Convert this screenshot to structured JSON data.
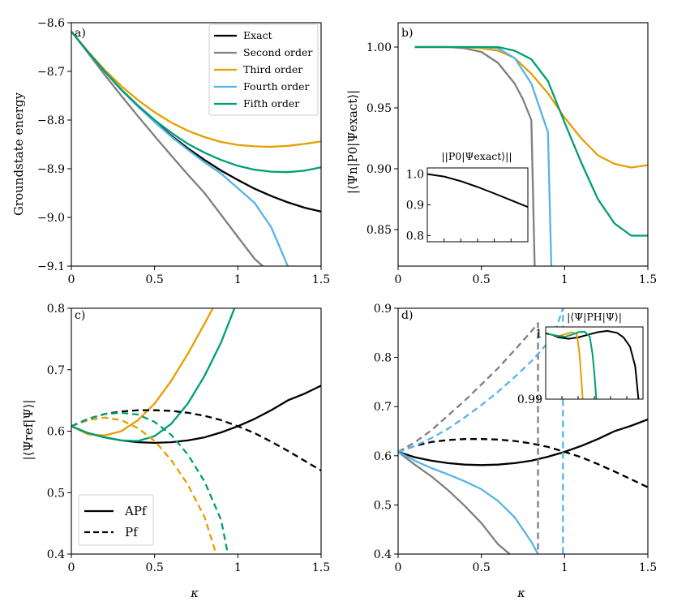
{
  "colors": {
    "exact": "#000000",
    "second": "#7f7f7f",
    "third": "#e69f00",
    "fourth": "#56b4e9",
    "fifth": "#009e73"
  },
  "chart_data": [
    {
      "type": "line",
      "panel_label": "a)",
      "xlabel": "",
      "ylabel": "Groundstate energy",
      "xlim": [
        0,
        1.5
      ],
      "ylim": [
        -9.1,
        -8.6
      ],
      "xticks": [
        "0",
        "0.5",
        "1",
        "1.5"
      ],
      "yticks": [
        "−8.6",
        "−8.7",
        "−8.8",
        "−8.9",
        "−9.0",
        "−9.1"
      ],
      "legend": [
        "Exact",
        "Second order",
        "Third order",
        "Fourth order",
        "Fifth order"
      ],
      "series": [
        {
          "name": "Exact",
          "color": "exact",
          "x": [
            0,
            0.1,
            0.2,
            0.3,
            0.4,
            0.5,
            0.6,
            0.7,
            0.8,
            0.9,
            1.0,
            1.1,
            1.2,
            1.3,
            1.4,
            1.5
          ],
          "y": [
            -8.618,
            -8.66,
            -8.7,
            -8.738,
            -8.772,
            -8.803,
            -8.832,
            -8.858,
            -8.882,
            -8.904,
            -8.923,
            -8.941,
            -8.956,
            -8.969,
            -8.98,
            -8.988
          ]
        },
        {
          "name": "Second order",
          "color": "second",
          "x": [
            0,
            0.1,
            0.2,
            0.3,
            0.4,
            0.5,
            0.6,
            0.7,
            0.8,
            0.9,
            1.0,
            1.1,
            1.15
          ],
          "y": [
            -8.618,
            -8.662,
            -8.707,
            -8.75,
            -8.792,
            -8.833,
            -8.873,
            -8.912,
            -8.95,
            -8.995,
            -9.04,
            -9.085,
            -9.1
          ]
        },
        {
          "name": "Third order",
          "color": "third",
          "x": [
            0,
            0.1,
            0.2,
            0.3,
            0.4,
            0.5,
            0.6,
            0.7,
            0.8,
            0.9,
            1.0,
            1.1,
            1.2,
            1.3,
            1.4,
            1.5
          ],
          "y": [
            -8.618,
            -8.659,
            -8.697,
            -8.73,
            -8.759,
            -8.784,
            -8.805,
            -8.822,
            -8.835,
            -8.845,
            -8.851,
            -8.854,
            -8.855,
            -8.853,
            -8.849,
            -8.844
          ]
        },
        {
          "name": "Fourth order",
          "color": "fourth",
          "x": [
            0,
            0.1,
            0.2,
            0.3,
            0.4,
            0.5,
            0.6,
            0.7,
            0.8,
            0.9,
            1.0,
            1.1,
            1.2,
            1.25,
            1.3
          ],
          "y": [
            -8.618,
            -8.66,
            -8.7,
            -8.738,
            -8.772,
            -8.804,
            -8.834,
            -8.861,
            -8.887,
            -8.91,
            -8.94,
            -8.97,
            -9.02,
            -9.06,
            -9.1
          ]
        },
        {
          "name": "Fifth order",
          "color": "fifth",
          "x": [
            0,
            0.1,
            0.2,
            0.3,
            0.4,
            0.5,
            0.6,
            0.7,
            0.8,
            0.9,
            1.0,
            1.1,
            1.2,
            1.3,
            1.4,
            1.5
          ],
          "y": [
            -8.618,
            -8.66,
            -8.7,
            -8.737,
            -8.77,
            -8.8,
            -8.826,
            -8.849,
            -8.867,
            -8.882,
            -8.894,
            -8.902,
            -8.906,
            -8.907,
            -8.904,
            -8.897
          ]
        }
      ]
    },
    {
      "type": "line",
      "panel_label": "b)",
      "xlabel": "",
      "ylabel": "|⟨Ψn|P0|Ψexact⟩|",
      "xlim": [
        0,
        1.5
      ],
      "ylim": [
        0.82,
        1.02
      ],
      "xticks": [
        "0",
        "0.5",
        "1",
        "1.5"
      ],
      "yticks": [
        "1.00",
        "0.95",
        "0.90",
        "0.85"
      ],
      "series": [
        {
          "name": "Second order",
          "color": "second",
          "x": [
            0.1,
            0.2,
            0.3,
            0.4,
            0.5,
            0.6,
            0.7,
            0.75,
            0.8,
            0.82
          ],
          "y": [
            1.0,
            1.0,
            1.0,
            0.999,
            0.996,
            0.987,
            0.97,
            0.957,
            0.94,
            0.82
          ]
        },
        {
          "name": "Third order",
          "color": "third",
          "x": [
            0.1,
            0.2,
            0.3,
            0.4,
            0.5,
            0.6,
            0.7,
            0.8,
            0.9,
            1.0,
            1.1,
            1.2,
            1.3,
            1.4,
            1.5
          ],
          "y": [
            1.0,
            1.0,
            1.0,
            1.0,
            0.999,
            0.997,
            0.991,
            0.978,
            0.962,
            0.942,
            0.925,
            0.911,
            0.904,
            0.901,
            0.903
          ]
        },
        {
          "name": "Fourth order",
          "color": "fourth",
          "x": [
            0.1,
            0.2,
            0.3,
            0.4,
            0.5,
            0.6,
            0.7,
            0.8,
            0.9,
            0.92
          ],
          "y": [
            1.0,
            1.0,
            1.0,
            1.0,
            1.0,
            0.999,
            0.991,
            0.97,
            0.93,
            0.82
          ]
        },
        {
          "name": "Fifth order",
          "color": "fifth",
          "x": [
            0.1,
            0.2,
            0.3,
            0.4,
            0.5,
            0.6,
            0.7,
            0.8,
            0.9,
            1.0,
            1.1,
            1.2,
            1.3,
            1.4,
            1.5
          ],
          "y": [
            1.0,
            1.0,
            1.0,
            1.0,
            1.0,
            1.0,
            0.997,
            0.99,
            0.972,
            0.938,
            0.905,
            0.875,
            0.855,
            0.845,
            0.845
          ]
        }
      ],
      "inset": {
        "title": "||P0|Ψexact⟩||",
        "xlim": [
          0,
          1.5
        ],
        "ylim": [
          0.78,
          1.02
        ],
        "yticks": [
          "1.0",
          "0.9",
          "0.8"
        ],
        "series": [
          {
            "name": "Exact",
            "color": "exact",
            "x": [
              0,
              0.25,
              0.5,
              0.75,
              1.0,
              1.25,
              1.5
            ],
            "y": [
              1.0,
              0.992,
              0.977,
              0.958,
              0.937,
              0.915,
              0.893
            ]
          }
        ]
      }
    },
    {
      "type": "line",
      "panel_label": "c)",
      "xlabel": "κ",
      "ylabel": "|⟨Ψref|Ψ⟩|",
      "xlim": [
        0,
        1.5
      ],
      "ylim": [
        0.4,
        0.8
      ],
      "xticks": [
        "0",
        "0.5",
        "1",
        "1.5"
      ],
      "yticks": [
        "0.8",
        "0.7",
        "0.6",
        "0.5",
        "0.4"
      ],
      "legend": [
        "APf",
        "Pf"
      ],
      "series": [
        {
          "name": "APf exact",
          "color": "exact",
          "dash": false,
          "x": [
            0,
            0.1,
            0.2,
            0.3,
            0.4,
            0.5,
            0.6,
            0.7,
            0.8,
            0.9,
            1.0,
            1.1,
            1.2,
            1.3,
            1.4,
            1.5
          ],
          "y": [
            0.608,
            0.597,
            0.59,
            0.585,
            0.582,
            0.581,
            0.582,
            0.585,
            0.59,
            0.598,
            0.608,
            0.62,
            0.634,
            0.65,
            0.661,
            0.674
          ]
        },
        {
          "name": "APf third",
          "color": "third",
          "dash": false,
          "x": [
            0,
            0.1,
            0.2,
            0.3,
            0.4,
            0.5,
            0.6,
            0.7,
            0.8,
            0.85
          ],
          "y": [
            0.608,
            0.595,
            0.593,
            0.6,
            0.618,
            0.645,
            0.682,
            0.726,
            0.775,
            0.8
          ]
        },
        {
          "name": "APf fifth",
          "color": "fifth",
          "dash": false,
          "x": [
            0,
            0.1,
            0.2,
            0.3,
            0.4,
            0.5,
            0.6,
            0.7,
            0.8,
            0.9,
            0.98
          ],
          "y": [
            0.608,
            0.597,
            0.59,
            0.585,
            0.584,
            0.592,
            0.612,
            0.645,
            0.69,
            0.745,
            0.8
          ]
        },
        {
          "name": "Pf exact",
          "color": "exact",
          "dash": true,
          "x": [
            0,
            0.1,
            0.2,
            0.3,
            0.4,
            0.5,
            0.6,
            0.7,
            0.8,
            0.9,
            1.0,
            1.1,
            1.2,
            1.3,
            1.4,
            1.5
          ],
          "y": [
            0.608,
            0.62,
            0.628,
            0.632,
            0.634,
            0.634,
            0.633,
            0.63,
            0.625,
            0.618,
            0.608,
            0.597,
            0.583,
            0.568,
            0.552,
            0.536
          ]
        },
        {
          "name": "Pf third",
          "color": "third",
          "dash": true,
          "x": [
            0,
            0.1,
            0.2,
            0.3,
            0.4,
            0.5,
            0.6,
            0.7,
            0.8,
            0.87
          ],
          "y": [
            0.608,
            0.618,
            0.622,
            0.618,
            0.605,
            0.584,
            0.553,
            0.513,
            0.46,
            0.4
          ]
        },
        {
          "name": "Pf fifth",
          "color": "fifth",
          "dash": true,
          "x": [
            0,
            0.1,
            0.2,
            0.3,
            0.4,
            0.5,
            0.6,
            0.7,
            0.8,
            0.9,
            0.94
          ],
          "y": [
            0.608,
            0.62,
            0.628,
            0.63,
            0.627,
            0.615,
            0.594,
            0.562,
            0.518,
            0.455,
            0.4
          ]
        }
      ]
    },
    {
      "type": "line",
      "panel_label": "d)",
      "xlabel": "κ",
      "ylabel": "",
      "xlim": [
        0,
        1.5
      ],
      "ylim": [
        0.4,
        0.9
      ],
      "xticks": [
        "0",
        "0.5",
        "1",
        "1.5"
      ],
      "yticks": [
        "0.9",
        "0.8",
        "0.7",
        "0.6",
        "0.5",
        "0.4"
      ],
      "series": [
        {
          "name": "APf exact",
          "color": "exact",
          "dash": false,
          "x": [
            0,
            0.1,
            0.2,
            0.3,
            0.4,
            0.5,
            0.6,
            0.7,
            0.8,
            0.9,
            1.0,
            1.1,
            1.2,
            1.3,
            1.4,
            1.5
          ],
          "y": [
            0.608,
            0.597,
            0.59,
            0.585,
            0.582,
            0.581,
            0.582,
            0.585,
            0.59,
            0.598,
            0.608,
            0.62,
            0.634,
            0.65,
            0.661,
            0.674
          ]
        },
        {
          "name": "APf second",
          "color": "second",
          "dash": false,
          "x": [
            0,
            0.1,
            0.2,
            0.3,
            0.4,
            0.5,
            0.6,
            0.67
          ],
          "y": [
            0.608,
            0.582,
            0.558,
            0.53,
            0.498,
            0.463,
            0.42,
            0.4
          ]
        },
        {
          "name": "APf fourth",
          "color": "fourth",
          "dash": false,
          "x": [
            0,
            0.1,
            0.2,
            0.3,
            0.4,
            0.5,
            0.6,
            0.7,
            0.8,
            0.84
          ],
          "y": [
            0.608,
            0.59,
            0.575,
            0.562,
            0.548,
            0.532,
            0.508,
            0.475,
            0.425,
            0.4
          ]
        },
        {
          "name": "Pf exact",
          "color": "exact",
          "dash": true,
          "x": [
            0,
            0.1,
            0.2,
            0.3,
            0.4,
            0.5,
            0.6,
            0.7,
            0.8,
            0.9,
            1.0,
            1.1,
            1.2,
            1.3,
            1.4,
            1.5
          ],
          "y": [
            0.608,
            0.62,
            0.628,
            0.632,
            0.634,
            0.634,
            0.633,
            0.63,
            0.625,
            0.618,
            0.608,
            0.597,
            0.583,
            0.568,
            0.552,
            0.536
          ]
        },
        {
          "name": "Pf second",
          "color": "second",
          "dash": true,
          "x": [
            0,
            0.1,
            0.2,
            0.3,
            0.4,
            0.5,
            0.6,
            0.7,
            0.8,
            0.84,
            0.84
          ],
          "y": [
            0.608,
            0.627,
            0.652,
            0.682,
            0.712,
            0.745,
            0.778,
            0.815,
            0.853,
            0.87,
            0.4
          ]
        },
        {
          "name": "Pf fourth",
          "color": "fourth",
          "dash": true,
          "x": [
            0,
            0.1,
            0.2,
            0.3,
            0.4,
            0.5,
            0.6,
            0.7,
            0.8,
            0.9,
            0.95,
            0.99,
            0.99
          ],
          "y": [
            0.608,
            0.62,
            0.636,
            0.655,
            0.678,
            0.703,
            0.73,
            0.76,
            0.792,
            0.83,
            0.86,
            0.9,
            0.4
          ]
        }
      ],
      "inset": {
        "title": "|⟨Ψ|PH|Ψ⟩|",
        "xlim": [
          0,
          1.5
        ],
        "ylim": [
          0.99,
          1.001
        ],
        "yticks": [
          "1",
          "0.99"
        ],
        "series": [
          {
            "name": "Exact",
            "color": "exact",
            "x": [
              0,
              0.1,
              0.2,
              0.35,
              0.5,
              0.65,
              0.8,
              0.95,
              1.1,
              1.2,
              1.3,
              1.38,
              1.43
            ],
            "y": [
              1.0,
              0.9998,
              0.9994,
              0.9992,
              0.9994,
              0.9998,
              1.0002,
              1.0004,
              1.0001,
              0.9994,
              0.998,
              0.995,
              0.99
            ]
          },
          {
            "name": "Third order",
            "color": "third",
            "x": [
              0,
              0.1,
              0.2,
              0.3,
              0.4,
              0.48,
              0.52,
              0.55,
              0.57
            ],
            "y": [
              1.0,
              0.9998,
              0.9996,
              0.9999,
              1.0002,
              0.9999,
              0.997,
              0.993,
              0.99
            ]
          },
          {
            "name": "Fifth order",
            "color": "fifth",
            "x": [
              0,
              0.1,
              0.2,
              0.3,
              0.4,
              0.5,
              0.6,
              0.68,
              0.72,
              0.75,
              0.78
            ],
            "y": [
              1.0,
              0.9998,
              0.9996,
              0.9995,
              0.9998,
              1.0002,
              1.0003,
              0.9995,
              0.997,
              0.994,
              0.99
            ]
          }
        ]
      }
    }
  ]
}
